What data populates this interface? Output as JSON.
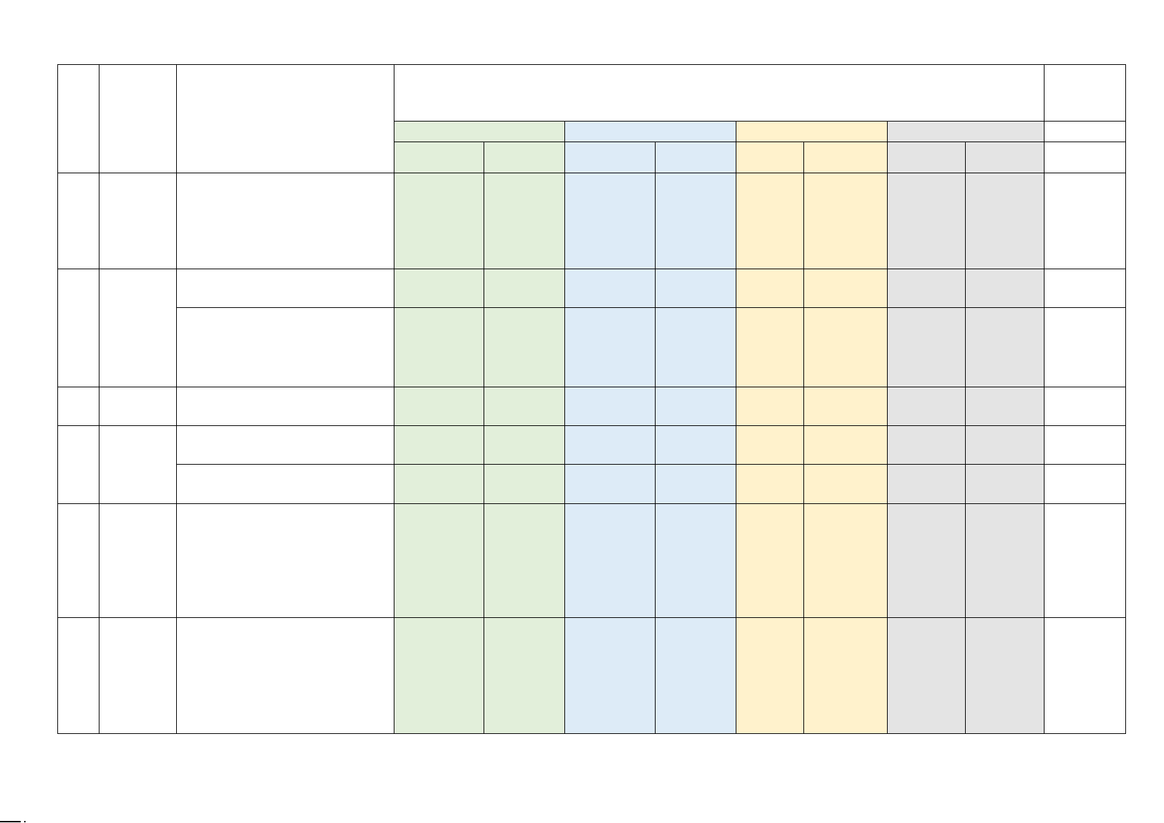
{
  "document": {
    "table": {
      "column_groups": [
        {
          "color": "#E2EFDA"
        },
        {
          "color": "#DDEBF7"
        },
        {
          "color": "#FFF2CC"
        },
        {
          "color": "#E4E4E4"
        }
      ],
      "body_rows": 8
    }
  }
}
